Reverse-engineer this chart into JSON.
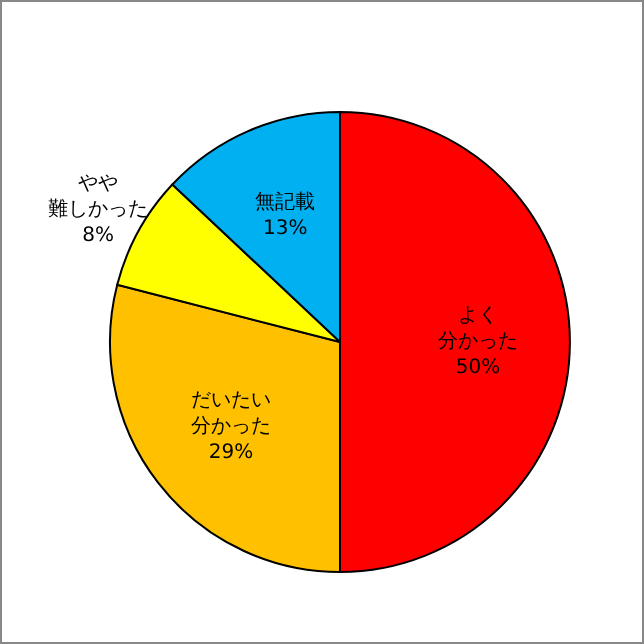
{
  "chart_data": {
    "type": "pie",
    "categories": [
      "よく分かった",
      "だいたい分かった",
      "やや難しかった",
      "無記載"
    ],
    "values": [
      50,
      29,
      8,
      13
    ],
    "colors": [
      "#ff0000",
      "#ffc000",
      "#ffff00",
      "#00b0f0"
    ],
    "value_labels": [
      "50%",
      "29%",
      "8%",
      "13%"
    ],
    "legend": false
  }
}
